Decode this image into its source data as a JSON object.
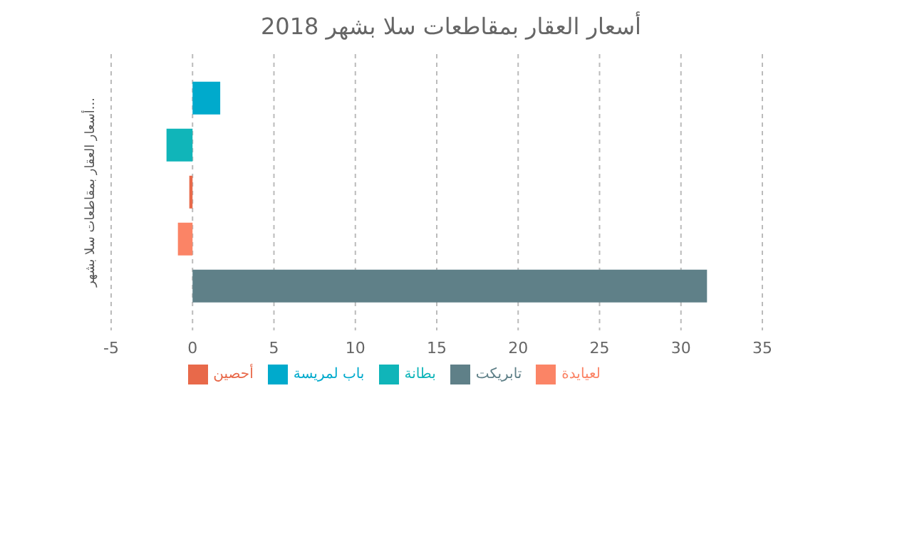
{
  "chart_data": {
    "type": "bar",
    "orientation": "horizontal",
    "title": "أسعار العقار بمقاطعات سلا بشهر 2018",
    "ylabel": "أسعار العقار بمقاطعات سلا بشهر...",
    "categories": [
      null
    ],
    "series": [
      {
        "name": "باب لمريسة",
        "color": "#00aacc",
        "values": [
          1.7
        ]
      },
      {
        "name": "بطانة",
        "color": "#10b5b9",
        "values": [
          -1.6
        ]
      },
      {
        "name": "أحصين",
        "color": "#e8694a",
        "values": [
          -0.2
        ]
      },
      {
        "name": "لعيايدة",
        "color": "#fb8466",
        "values": [
          -0.9
        ]
      },
      {
        "name": "تابريكت",
        "color": "#5f8088",
        "values": [
          31.6
        ]
      }
    ],
    "xlim": [
      -5,
      35
    ],
    "xticks": [
      -5,
      0,
      5,
      10,
      15,
      20,
      25,
      30,
      35
    ],
    "grid": "x",
    "legend": "bottom"
  }
}
